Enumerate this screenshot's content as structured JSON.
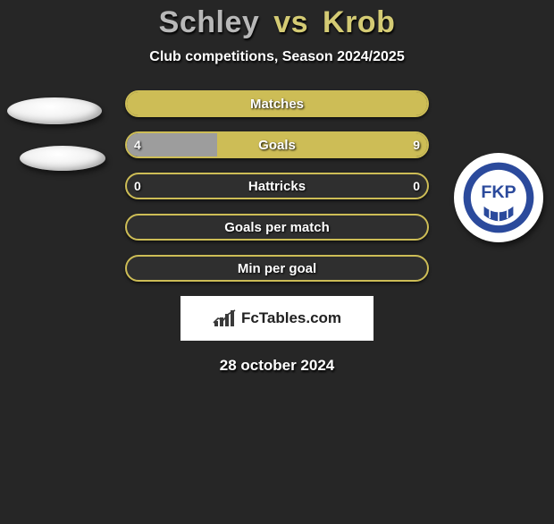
{
  "title": {
    "player1": "Schley",
    "vs": "vs",
    "player2": "Krob"
  },
  "subtitle": "Club competitions, Season 2024/2025",
  "colors": {
    "left": "#9d9d9d",
    "right": "#cdbd56",
    "bar_bg": "#2f2f2f",
    "bar_border": "#cdbd56"
  },
  "logo": {
    "text": "FKP",
    "ring": "#2b4a9c",
    "inner": "#ffffff",
    "text_color": "#2b4a9c"
  },
  "bars": [
    {
      "label": "Matches",
      "left_val": "",
      "right_val": "",
      "left_pct": 50,
      "right_pct": 50,
      "fill_mode": "full-right"
    },
    {
      "label": "Goals",
      "left_val": "4",
      "right_val": "9",
      "left_pct": 30,
      "right_pct": 70,
      "fill_mode": "split"
    },
    {
      "label": "Hattricks",
      "left_val": "0",
      "right_val": "0",
      "left_pct": 0,
      "right_pct": 0,
      "fill_mode": "outline"
    },
    {
      "label": "Goals per match",
      "left_val": "",
      "right_val": "",
      "left_pct": 0,
      "right_pct": 0,
      "fill_mode": "outline"
    },
    {
      "label": "Min per goal",
      "left_val": "",
      "right_val": "",
      "left_pct": 0,
      "right_pct": 0,
      "fill_mode": "outline"
    }
  ],
  "brand": "FcTables.com",
  "date": "28 october 2024"
}
